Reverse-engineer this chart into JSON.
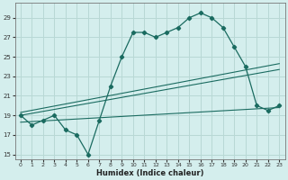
{
  "xlabel": "Humidex (Indice chaleur)",
  "bg_color": "#d4eeed",
  "grid_color": "#b8d8d5",
  "line_color": "#1a6b60",
  "xlim": [
    -0.5,
    23.5
  ],
  "ylim": [
    14.5,
    30.5
  ],
  "xticks": [
    0,
    1,
    2,
    3,
    4,
    5,
    6,
    7,
    8,
    9,
    10,
    11,
    12,
    13,
    14,
    15,
    16,
    17,
    18,
    19,
    20,
    21,
    22,
    23
  ],
  "yticks": [
    15,
    17,
    19,
    21,
    23,
    25,
    27,
    29
  ],
  "main_y": [
    19.0,
    18.0,
    18.5,
    19.0,
    17.5,
    17.0,
    15.0,
    18.5,
    22.0,
    25.0,
    27.5,
    27.5,
    27.0,
    27.5,
    28.0,
    29.0,
    29.5,
    29.0,
    28.0,
    26.0,
    24.0,
    20.0,
    19.5,
    20.0
  ],
  "trend_lines": [
    {
      "x": [
        0,
        23
      ],
      "y": [
        19.3,
        24.3
      ]
    },
    {
      "x": [
        0,
        23
      ],
      "y": [
        19.0,
        23.7
      ]
    },
    {
      "x": [
        0,
        23
      ],
      "y": [
        18.3,
        19.8
      ]
    }
  ]
}
